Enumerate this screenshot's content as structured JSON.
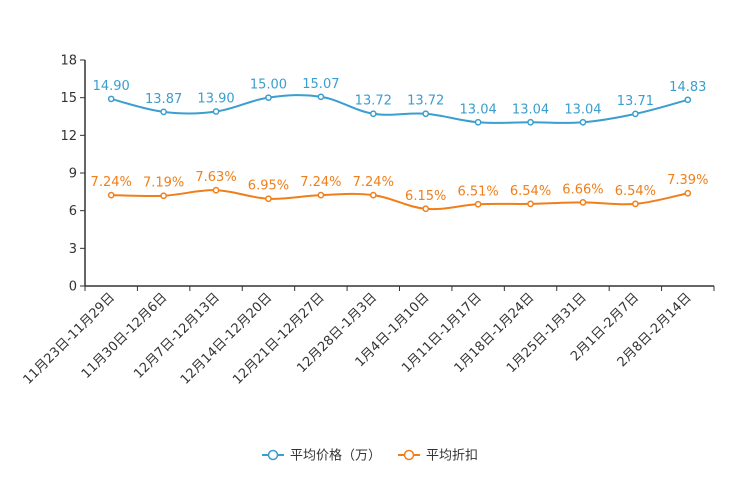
{
  "chart_data": {
    "type": "line",
    "title": "",
    "xlabel": "",
    "ylabel": "",
    "ylim": [
      0,
      18
    ],
    "yticks": [
      0,
      3,
      6,
      9,
      12,
      15,
      18
    ],
    "grid": false,
    "legend_position": "bottom-center",
    "categories": [
      "11月23日-11月29日",
      "11月30日-12月6日",
      "12月7日-12月13日",
      "12月14日-12月20日",
      "12月21日-12月27日",
      "12月28日-1月3日",
      "1月4日-1月10日",
      "1月11日-1月17日",
      "1月18日-1月24日",
      "1月25日-1月31日",
      "2月1日-2月7日",
      "2月8日-2月14日"
    ],
    "series": [
      {
        "name": "平均价格（万）",
        "color": "#3a9ecf",
        "values": [
          14.9,
          13.87,
          13.9,
          15.0,
          15.07,
          13.72,
          13.72,
          13.04,
          13.04,
          13.04,
          13.71,
          14.83
        ],
        "labels": [
          "14.90",
          "13.87",
          "13.90",
          "15.00",
          "15.07",
          "13.72",
          "13.72",
          "13.04",
          "13.04",
          "13.04",
          "13.71",
          "14.83"
        ]
      },
      {
        "name": "平均折扣",
        "color": "#f07f1b",
        "values": [
          7.24,
          7.19,
          7.63,
          6.95,
          7.24,
          7.24,
          6.15,
          6.51,
          6.54,
          6.66,
          6.54,
          7.39
        ],
        "labels": [
          "7.24%",
          "7.19%",
          "7.63%",
          "6.95%",
          "7.24%",
          "7.24%",
          "6.15%",
          "6.51%",
          "6.54%",
          "6.66%",
          "6.54%",
          "7.39%"
        ]
      }
    ]
  }
}
